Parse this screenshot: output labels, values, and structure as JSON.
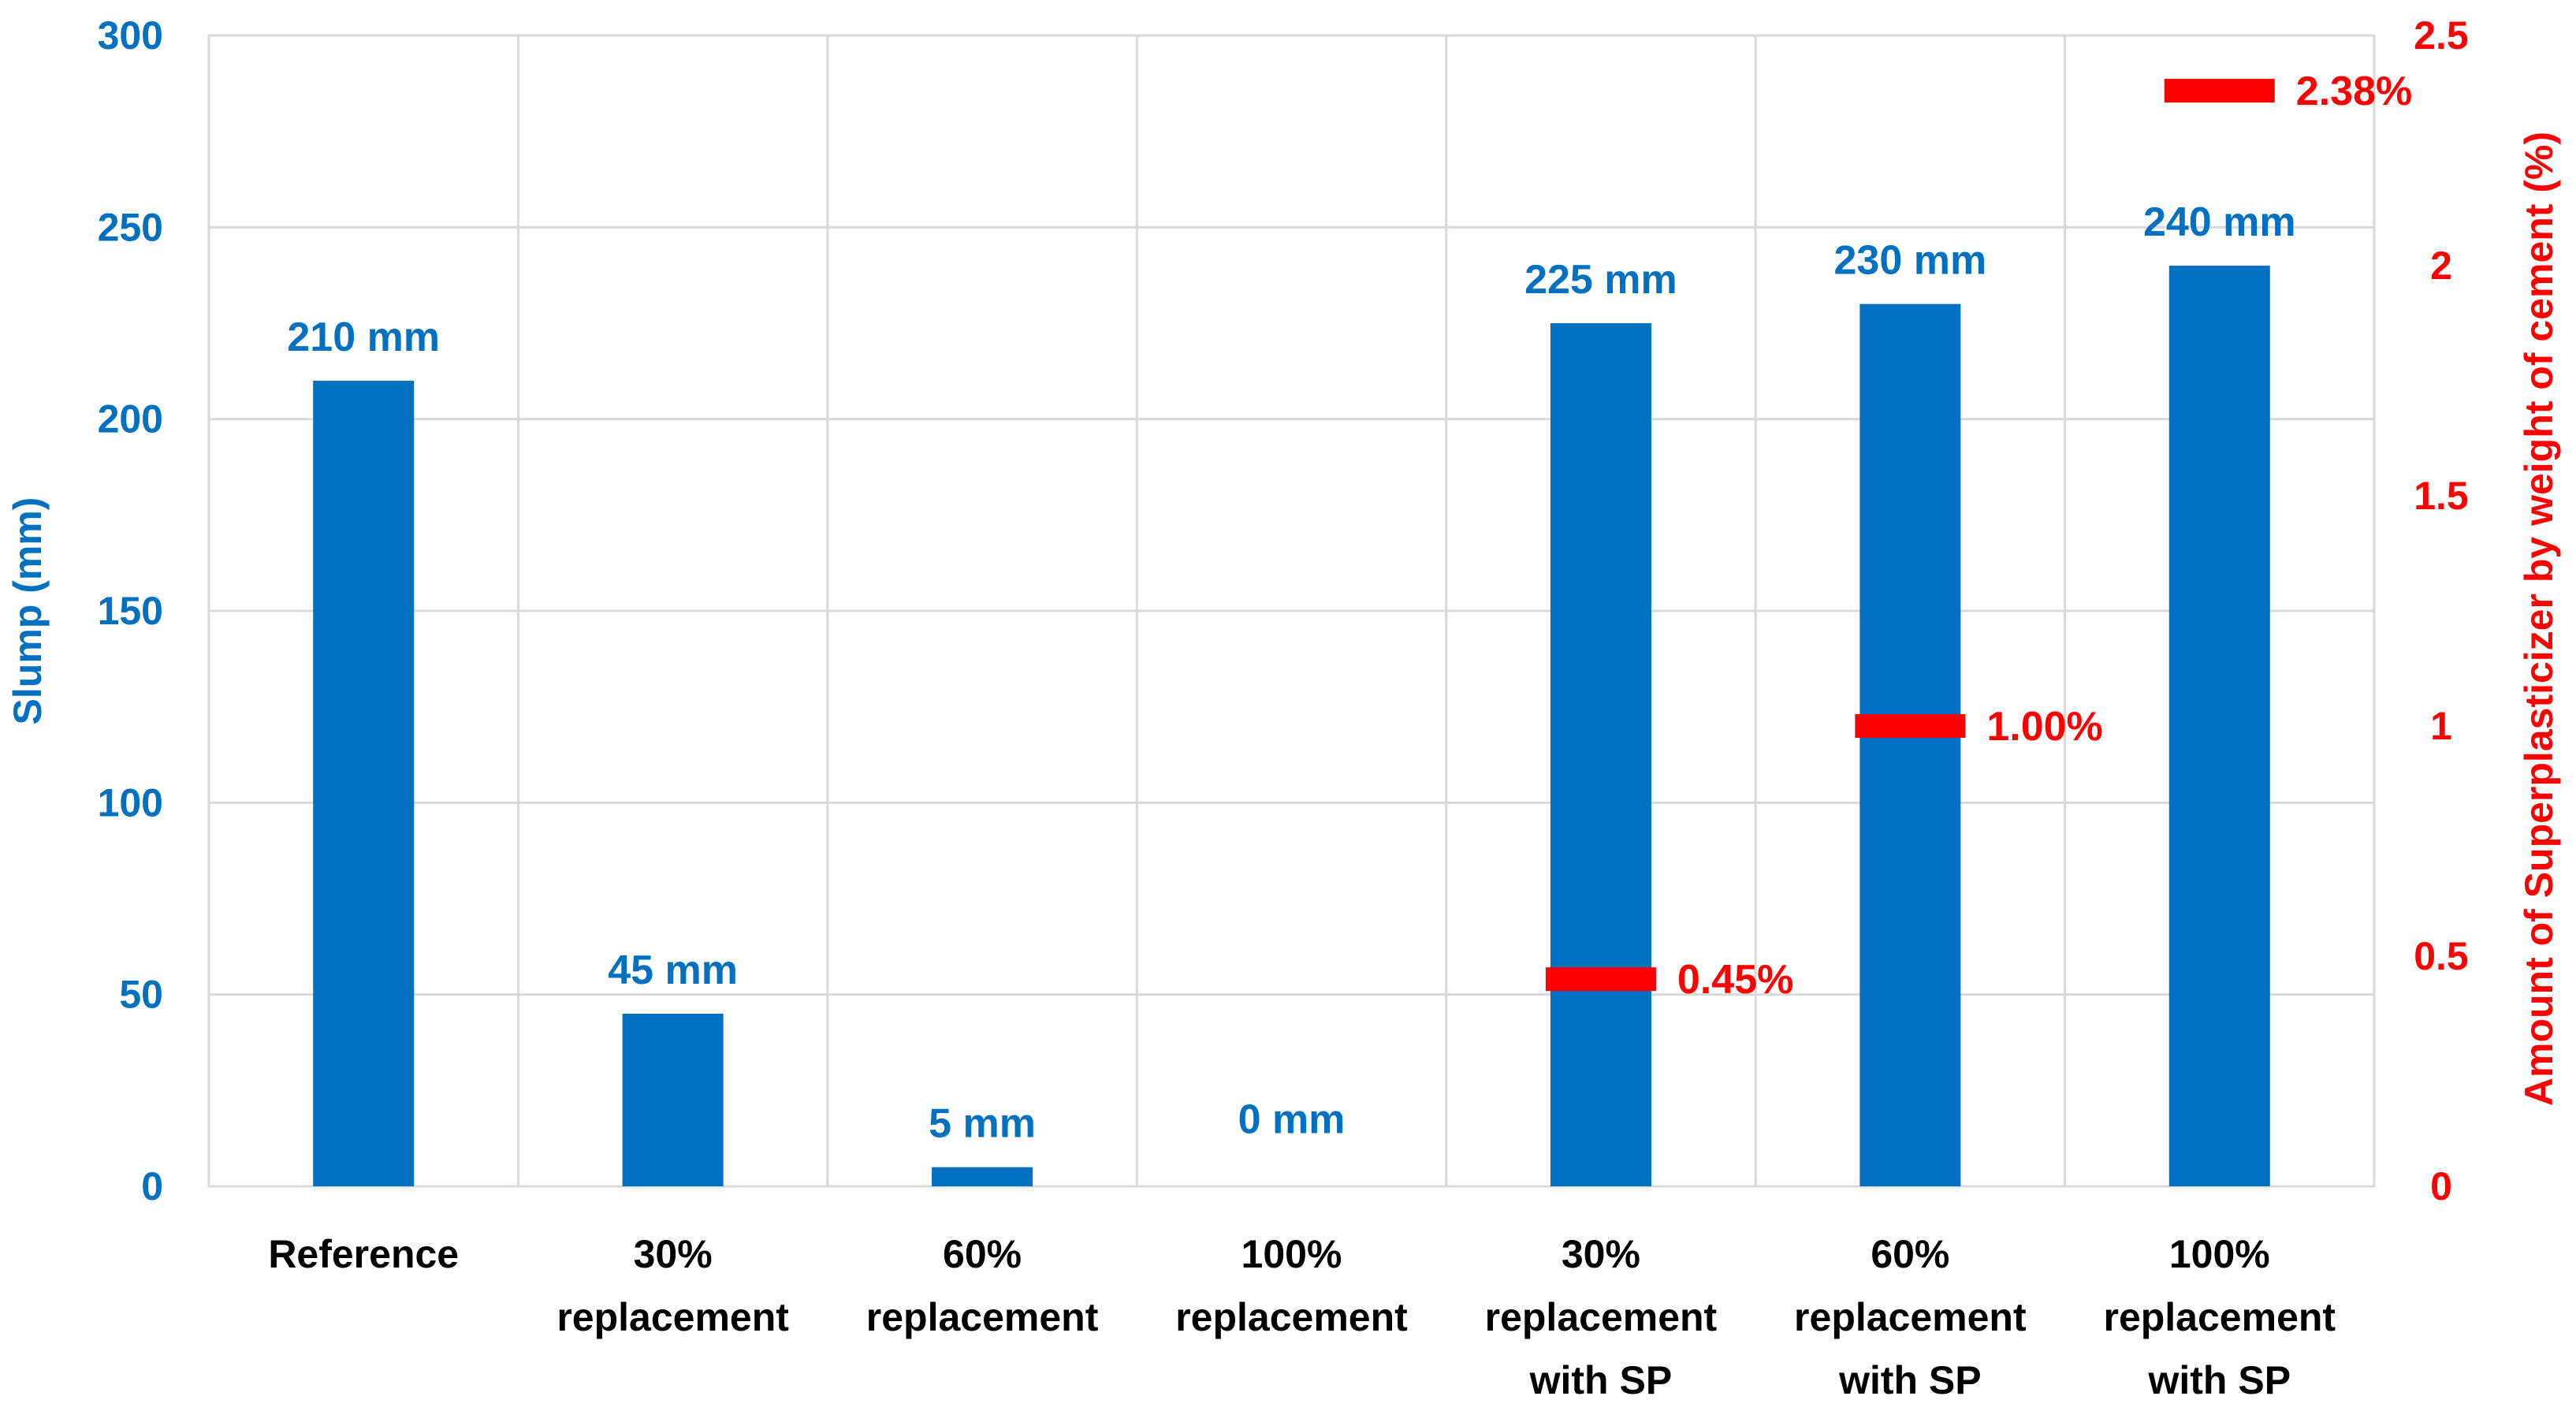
{
  "chart_data": {
    "type": "bar",
    "categories": [
      [
        "Reference"
      ],
      [
        "30%",
        "replacement"
      ],
      [
        "60%",
        "replacement"
      ],
      [
        "100%",
        "replacement"
      ],
      [
        "30%",
        "replacement",
        "with SP"
      ],
      [
        "60%",
        "replacement",
        "with SP"
      ],
      [
        "100%",
        "replacement",
        "with SP"
      ]
    ],
    "series": [
      {
        "axis": "left",
        "type": "bar",
        "values": [
          210,
          45,
          5,
          0,
          225,
          230,
          240
        ],
        "labels": [
          "210 mm",
          "45 mm",
          "5 mm",
          "0 mm",
          "225 mm",
          "230 mm",
          "240 mm"
        ]
      },
      {
        "axis": "right",
        "type": "marker",
        "points": [
          {
            "category_index": 4,
            "value": 0.45,
            "label": "0.45%"
          },
          {
            "category_index": 5,
            "value": 1.0,
            "label": "1.00%"
          },
          {
            "category_index": 6,
            "value": 2.38,
            "label": "2.38%"
          }
        ]
      }
    ],
    "ylabel": "Slump (mm)",
    "y2label": "Amount of Superplasticizer by weight of cement (%)",
    "ylim": [
      0,
      300
    ],
    "y2lim": [
      0,
      2.5
    ],
    "yticks": [
      "0",
      "50",
      "100",
      "150",
      "200",
      "250",
      "300"
    ],
    "y2ticks": [
      "0",
      "0.5",
      "1",
      "1.5",
      "2",
      "2.5"
    ],
    "grid": true,
    "legend": "none",
    "colors": {
      "bar": "#0070C0",
      "left_axis": "#0070C0",
      "right_axis": "#FF0000",
      "marker": "#FF0000",
      "grid": "#D9D9D9",
      "category_text": "#000000"
    }
  }
}
